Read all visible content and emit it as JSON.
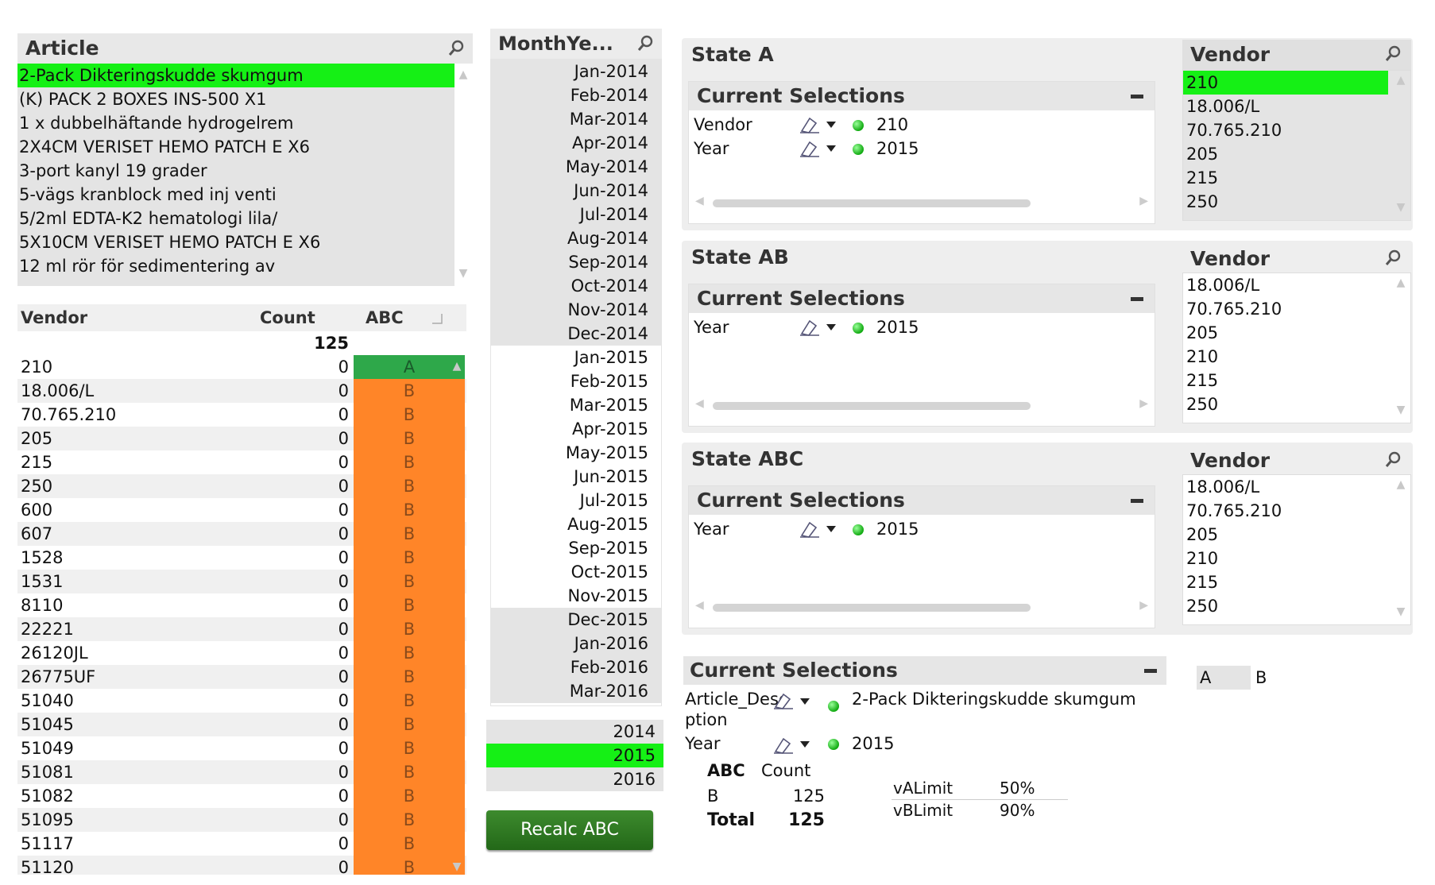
{
  "article": {
    "title": "Article",
    "items": [
      {
        "label": "2-Pack Dikteringskudde skumgum",
        "selected": true
      },
      {
        "label": "(K) PACK 2 BOXES INS-500 X1"
      },
      {
        "label": "1 x dubbelhäftande hydrogelrem"
      },
      {
        "label": "2X4CM VERISET HEMO PATCH E X6"
      },
      {
        "label": "3-port kanyl 19 grader"
      },
      {
        "label": "5-vägs kranblock med inj venti"
      },
      {
        "label": "5/2ml EDTA-K2 hematologi lila/"
      },
      {
        "label": "5X10CM VERISET HEMO PATCH E X6"
      },
      {
        "label": "12 ml rör för sedimentering av"
      }
    ]
  },
  "monthyear": {
    "title": "MonthYe...",
    "items": [
      {
        "label": "Jan-2014",
        "state": "excluded"
      },
      {
        "label": "Feb-2014",
        "state": "excluded"
      },
      {
        "label": "Mar-2014",
        "state": "excluded"
      },
      {
        "label": "Apr-2014",
        "state": "excluded"
      },
      {
        "label": "May-2014",
        "state": "excluded"
      },
      {
        "label": "Jun-2014",
        "state": "excluded"
      },
      {
        "label": "Jul-2014",
        "state": "excluded"
      },
      {
        "label": "Aug-2014",
        "state": "excluded"
      },
      {
        "label": "Sep-2014",
        "state": "excluded"
      },
      {
        "label": "Oct-2014",
        "state": "excluded"
      },
      {
        "label": "Nov-2014",
        "state": "excluded"
      },
      {
        "label": "Dec-2014",
        "state": "excluded"
      },
      {
        "label": "Jan-2015",
        "state": "possible"
      },
      {
        "label": "Feb-2015",
        "state": "possible"
      },
      {
        "label": "Mar-2015",
        "state": "possible"
      },
      {
        "label": "Apr-2015",
        "state": "possible"
      },
      {
        "label": "May-2015",
        "state": "possible"
      },
      {
        "label": "Jun-2015",
        "state": "possible"
      },
      {
        "label": "Jul-2015",
        "state": "possible"
      },
      {
        "label": "Aug-2015",
        "state": "possible"
      },
      {
        "label": "Sep-2015",
        "state": "possible"
      },
      {
        "label": "Oct-2015",
        "state": "possible"
      },
      {
        "label": "Nov-2015",
        "state": "possible"
      },
      {
        "label": "Dec-2015",
        "state": "excluded"
      },
      {
        "label": "Jan-2016",
        "state": "excluded"
      },
      {
        "label": "Feb-2016",
        "state": "excluded"
      },
      {
        "label": "Mar-2016",
        "state": "excluded"
      }
    ]
  },
  "years": [
    {
      "label": "2014",
      "state": "excluded"
    },
    {
      "label": "2015",
      "state": "selected"
    },
    {
      "label": "2016",
      "state": "excluded"
    }
  ],
  "recalc_button": "Recalc ABC",
  "vendor_table": {
    "headers": {
      "vendor": "Vendor",
      "count": "Count",
      "abc": "ABC"
    },
    "total_count": "125",
    "rows": [
      {
        "vendor": "210",
        "count": "0",
        "abc": "A"
      },
      {
        "vendor": "18.006/L",
        "count": "0",
        "abc": "B"
      },
      {
        "vendor": "70.765.210",
        "count": "0",
        "abc": "B"
      },
      {
        "vendor": "205",
        "count": "0",
        "abc": "B"
      },
      {
        "vendor": "215",
        "count": "0",
        "abc": "B"
      },
      {
        "vendor": "250",
        "count": "0",
        "abc": "B"
      },
      {
        "vendor": "600",
        "count": "0",
        "abc": "B"
      },
      {
        "vendor": "607",
        "count": "0",
        "abc": "B"
      },
      {
        "vendor": "1528",
        "count": "0",
        "abc": "B"
      },
      {
        "vendor": "1531",
        "count": "0",
        "abc": "B"
      },
      {
        "vendor": "8110",
        "count": "0",
        "abc": "B"
      },
      {
        "vendor": "22221",
        "count": "0",
        "abc": "B"
      },
      {
        "vendor": "26120JL",
        "count": "0",
        "abc": "B"
      },
      {
        "vendor": "26775UF",
        "count": "0",
        "abc": "B"
      },
      {
        "vendor": "51040",
        "count": "0",
        "abc": "B"
      },
      {
        "vendor": "51045",
        "count": "0",
        "abc": "B"
      },
      {
        "vendor": "51049",
        "count": "0",
        "abc": "B"
      },
      {
        "vendor": "51081",
        "count": "0",
        "abc": "B"
      },
      {
        "vendor": "51082",
        "count": "0",
        "abc": "B"
      },
      {
        "vendor": "51095",
        "count": "0",
        "abc": "B"
      },
      {
        "vendor": "51117",
        "count": "0",
        "abc": "B"
      },
      {
        "vendor": "51120",
        "count": "0",
        "abc": "B"
      }
    ]
  },
  "states": [
    {
      "title": "State A",
      "cs_title": "Current Selections",
      "selections": [
        {
          "field": "Vendor",
          "value": "210"
        },
        {
          "field": "Year",
          "value": "2015"
        }
      ],
      "vendor_title": "Vendor",
      "vendor_items": [
        {
          "label": "210",
          "state": "selected"
        },
        {
          "label": "18.006/L",
          "state": "excluded"
        },
        {
          "label": "70.765.210",
          "state": "excluded"
        },
        {
          "label": "205",
          "state": "excluded"
        },
        {
          "label": "215",
          "state": "excluded"
        },
        {
          "label": "250",
          "state": "excluded"
        }
      ]
    },
    {
      "title": "State AB",
      "cs_title": "Current Selections",
      "selections": [
        {
          "field": "Year",
          "value": "2015"
        }
      ],
      "vendor_title": "Vendor",
      "vendor_items": [
        {
          "label": "18.006/L",
          "state": "possible"
        },
        {
          "label": "70.765.210",
          "state": "possible"
        },
        {
          "label": "205",
          "state": "possible"
        },
        {
          "label": "210",
          "state": "possible"
        },
        {
          "label": "215",
          "state": "possible"
        },
        {
          "label": "250",
          "state": "possible"
        }
      ]
    },
    {
      "title": "State ABC",
      "cs_title": "Current Selections",
      "selections": [
        {
          "field": "Year",
          "value": "2015"
        }
      ],
      "vendor_title": "Vendor",
      "vendor_items": [
        {
          "label": "18.006/L",
          "state": "possible"
        },
        {
          "label": "70.765.210",
          "state": "possible"
        },
        {
          "label": "205",
          "state": "possible"
        },
        {
          "label": "210",
          "state": "possible"
        },
        {
          "label": "215",
          "state": "possible"
        },
        {
          "label": "250",
          "state": "possible"
        }
      ]
    }
  ],
  "main_cs": {
    "title": "Current Selections",
    "row1_field_l1": "Article_Desc",
    "row1_field_l2": "ption",
    "row1_value": "2-Pack Dikteringskudde skumgum",
    "row2_field": "Year",
    "row2_value": "2015"
  },
  "abc_list": [
    {
      "label": "A",
      "state": "excluded"
    },
    {
      "label": "B",
      "state": "possible"
    }
  ],
  "abc_summary": {
    "headers": {
      "abc": "ABC",
      "count": "Count"
    },
    "rows": [
      {
        "abc": "B",
        "count": "125"
      }
    ],
    "total": {
      "label": "Total",
      "count": "125"
    }
  },
  "variables": [
    {
      "name": "vALimit",
      "value": "50%"
    },
    {
      "name": "vBLimit",
      "value": "90%"
    }
  ],
  "colors": {
    "selected": "#15f015",
    "excluded": "#e4e4e4",
    "abc_a": "#2ea84a",
    "abc_b": "#ff8528"
  }
}
